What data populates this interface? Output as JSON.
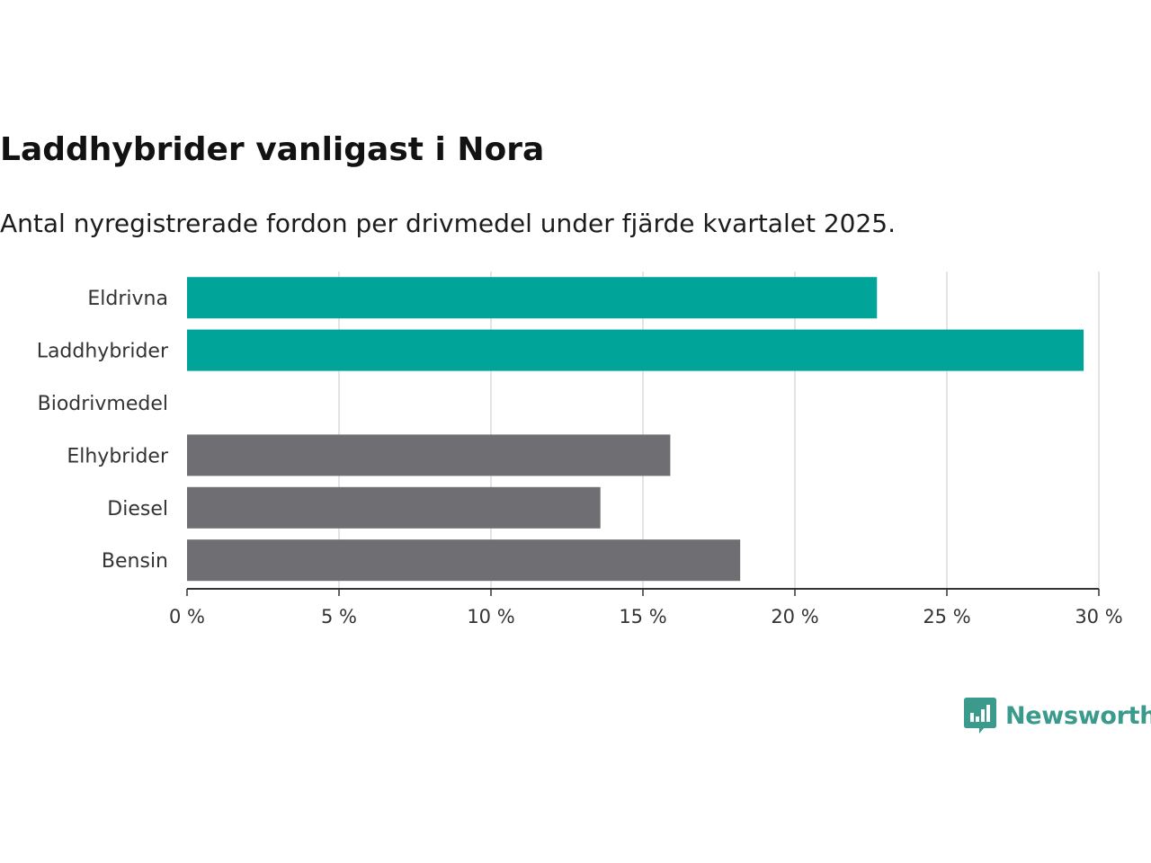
{
  "header": {
    "title": "Laddhybrider vanligast i Nora",
    "subtitle": "Antal nyregistrerade fordon per drivmedel under fjärde kvartalet 2025."
  },
  "chart_data": {
    "type": "bar",
    "orientation": "horizontal",
    "categories": [
      "Eldrivna",
      "Laddhybrider",
      "Biodrivmedel",
      "Elhybrider",
      "Diesel",
      "Bensin"
    ],
    "values": [
      22.7,
      29.5,
      0,
      15.9,
      13.6,
      18.2
    ],
    "colors": [
      "#00a499",
      "#00a499",
      "#6e6e73",
      "#6e6e73",
      "#6e6e73",
      "#6e6e73"
    ],
    "xlim": [
      0,
      30
    ],
    "xticks": [
      0,
      5,
      10,
      15,
      20,
      25,
      30
    ],
    "xtick_labels": [
      "0 %",
      "5 %",
      "10 %",
      "15 %",
      "20 %",
      "25 %",
      "30 %"
    ],
    "grid": true,
    "xlabel": "",
    "ylabel": ""
  },
  "brand": {
    "name": "Newsworthy",
    "color": "#3a9a8c",
    "icon": "newsworthy-logo-icon"
  }
}
